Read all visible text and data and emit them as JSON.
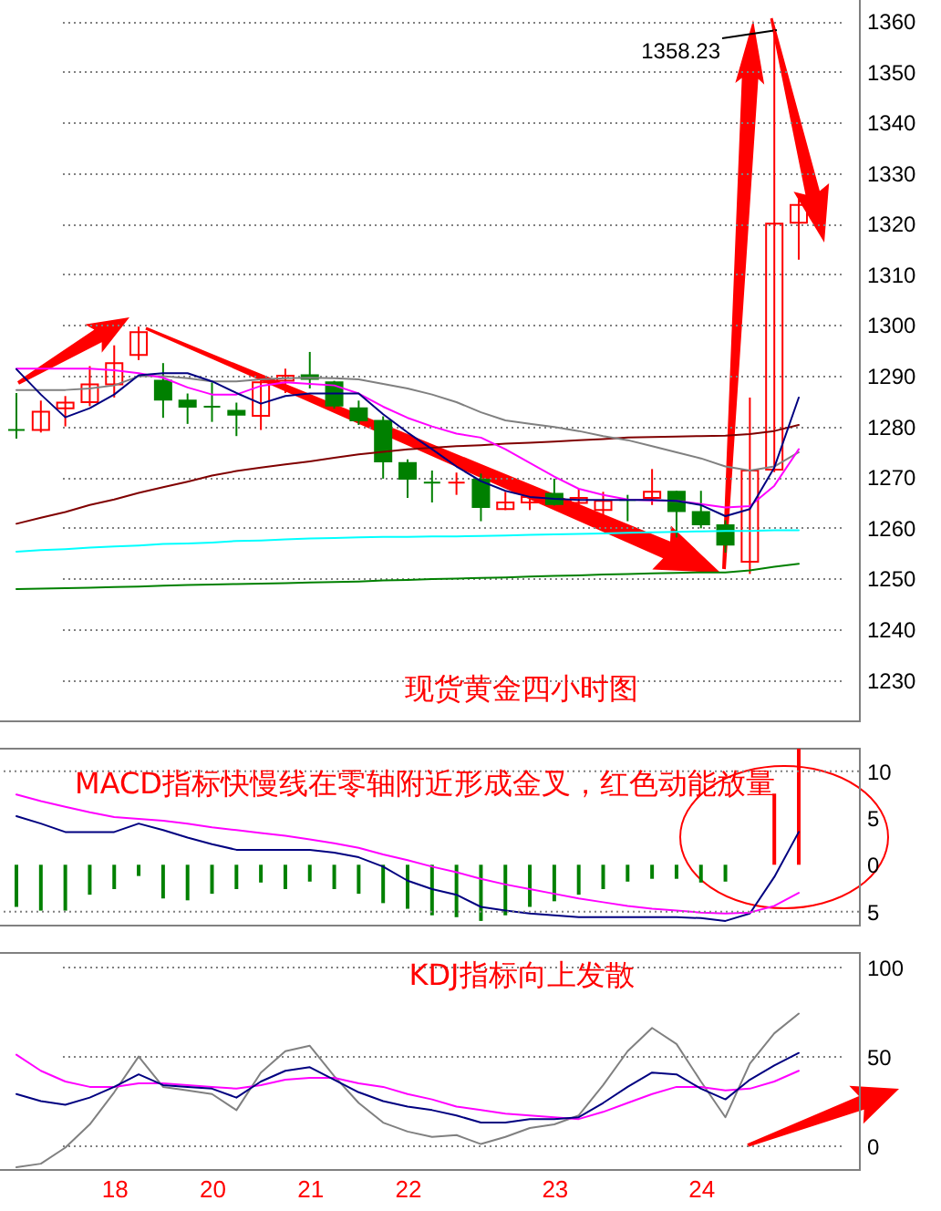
{
  "chart_data": [
    {
      "type": "candlestick",
      "categories": [
        null,
        null,
        null,
        null,
        "18",
        null,
        null,
        null,
        "20",
        null,
        null,
        null,
        "21",
        null,
        null,
        null,
        "22",
        null,
        null,
        null,
        null,
        null,
        "23",
        null,
        null,
        null,
        null,
        null,
        "24",
        null,
        null,
        null,
        null
      ],
      "ohlc": [
        [
          1279.3,
          1286.6,
          1277.6,
          1279.3
        ],
        [
          1279.3,
          1285.1,
          1278.8,
          1282.9
        ],
        [
          1283.6,
          1286.0,
          1280.0,
          1284.7
        ],
        [
          1284.8,
          1291.9,
          1284.0,
          1288.3
        ],
        [
          1288.3,
          1296.0,
          1285.7,
          1292.5
        ],
        [
          1294.1,
          1299.7,
          1293.1,
          1298.6
        ],
        [
          1289.0,
          1292.5,
          1281.7,
          1285.3
        ],
        [
          1285.1,
          1286.5,
          1280.5,
          1283.9
        ],
        [
          1283.9,
          1288.7,
          1280.9,
          1283.9
        ],
        [
          1283.1,
          1284.7,
          1278.1,
          1282.3
        ],
        [
          1282.1,
          1290.1,
          1279.3,
          1288.7
        ],
        [
          1289.0,
          1291.4,
          1286.6,
          1290.0
        ],
        [
          1290.1,
          1294.7,
          1287.5,
          1289.4
        ],
        [
          1288.7,
          1289.0,
          1283.5,
          1284.1
        ],
        [
          1283.6,
          1285.1,
          1280.3,
          1281.2
        ],
        [
          1281.1,
          1282.0,
          1269.7,
          1273.1
        ],
        [
          1272.8,
          1273.5,
          1265.9,
          1269.7
        ],
        [
          1268.9,
          1271.3,
          1265.0,
          1268.9
        ],
        [
          1268.9,
          1270.9,
          1266.5,
          1268.9
        ],
        [
          1269.5,
          1270.7,
          1261.3,
          1264.1
        ],
        [
          1263.7,
          1267.1,
          1263.5,
          1265.0
        ],
        [
          1265.0,
          1268.3,
          1263.5,
          1266.1
        ],
        [
          1266.7,
          1269.7,
          1264.4,
          1264.7
        ],
        [
          1264.9,
          1267.7,
          1264.1,
          1265.9
        ],
        [
          1263.5,
          1267.1,
          1262.3,
          1265.3
        ],
        [
          1265.5,
          1266.5,
          1261.3,
          1265.5
        ],
        [
          1265.9,
          1271.6,
          1264.5,
          1267.1
        ],
        [
          1267.1,
          1267.3,
          1258.1,
          1263.3
        ],
        [
          1263.1,
          1267.3,
          1259.9,
          1260.7
        ],
        [
          1260.5,
          1261.5,
          1255.1,
          1256.7
        ],
        [
          1253.3,
          1285.7,
          1250.9,
          1271.3
        ],
        [
          1271.5,
          1358.23,
          1271.0,
          1320.0
        ],
        [
          1320.2,
          1325.2,
          1312.9,
          1323.7
        ]
      ],
      "colors": [
        "#008000",
        "#ff0000",
        "#ff0000",
        "#ff0000",
        "#ff0000",
        "#ff0000",
        "#008000",
        "#008000",
        "#008000",
        "#008000",
        "#ff0000",
        "#ff0000",
        "#008000",
        "#008000",
        "#008000",
        "#008000",
        "#008000",
        "#008000",
        "#ff0000",
        "#008000",
        "#ff0000",
        "#ff0000",
        "#008000",
        "#ff0000",
        "#ff0000",
        "#008000",
        "#ff0000",
        "#008000",
        "#008000",
        "#008000",
        "#ff0000",
        "#ff0000",
        "#ff0000"
      ],
      "series": [
        {
          "type": "line",
          "color": "#008000",
          "values": [
            1247.9,
            1248.0,
            1248.1,
            1248.2,
            1248.3,
            1248.4,
            1248.6,
            1248.7,
            1248.8,
            1248.9,
            1249.0,
            1249.1,
            1249.2,
            1249.3,
            1249.4,
            1249.6,
            1249.7,
            1249.9,
            1250.0,
            1250.1,
            1250.2,
            1250.4,
            1250.5,
            1250.6,
            1250.8,
            1250.9,
            1251.0,
            1251.1,
            1251.2,
            1251.2,
            1251.6,
            1252.3,
            1252.9
          ]
        },
        {
          "type": "line",
          "color": "#00ffff",
          "values": [
            1255.3,
            1255.6,
            1255.8,
            1256.1,
            1256.3,
            1256.5,
            1256.8,
            1256.9,
            1257.1,
            1257.4,
            1257.5,
            1257.7,
            1257.9,
            1258.0,
            1258.1,
            1258.2,
            1258.2,
            1258.3,
            1258.3,
            1258.4,
            1258.5,
            1258.6,
            1258.7,
            1258.8,
            1258.9,
            1259.0,
            1259.1,
            1259.2,
            1259.3,
            1259.4,
            1259.4,
            1259.5,
            1259.5
          ]
        },
        {
          "type": "line",
          "color": "#800000",
          "values": [
            1260.8,
            1262.0,
            1263.1,
            1264.5,
            1265.6,
            1266.9,
            1268.0,
            1269.1,
            1270.3,
            1271.2,
            1271.9,
            1272.5,
            1273.1,
            1273.8,
            1274.5,
            1275.0,
            1275.5,
            1275.8,
            1276.1,
            1276.3,
            1276.6,
            1276.8,
            1277.0,
            1277.3,
            1277.5,
            1277.8,
            1277.9,
            1278.0,
            1278.1,
            1278.2,
            1278.5,
            1279.1,
            1280.3
          ]
        },
        {
          "type": "line",
          "color": "#808080",
          "values": [
            1287.2,
            1287.2,
            1287.2,
            1287.5,
            1288.1,
            1289.9,
            1289.9,
            1289.5,
            1288.9,
            1288.9,
            1289.3,
            1289.5,
            1289.6,
            1289.5,
            1289.3,
            1288.4,
            1287.5,
            1286.3,
            1284.8,
            1282.8,
            1281.2,
            1280.5,
            1279.9,
            1279.1,
            1278.1,
            1277.3,
            1276.1,
            1274.9,
            1273.7,
            1272.1,
            1271.3,
            1272.1,
            1274.9
          ]
        },
        {
          "type": "line",
          "color": "#ff00ff",
          "values": [
            1291.4,
            1291.4,
            1291.4,
            1291.4,
            1291.1,
            1290.5,
            1289.6,
            1287.7,
            1286.3,
            1286.3,
            1288.0,
            1288.7,
            1288.4,
            1288.1,
            1286.5,
            1283.9,
            1281.7,
            1280.0,
            1278.6,
            1277.8,
            1275.5,
            1272.8,
            1270.1,
            1267.7,
            1266.5,
            1265.6,
            1265.4,
            1265.3,
            1264.7,
            1264.0,
            1264.3,
            1268.3,
            1275.5
          ]
        },
        {
          "type": "line",
          "color": "#000080",
          "values": [
            1291.3,
            1286.3,
            1281.8,
            1283.6,
            1286.3,
            1290.1,
            1290.5,
            1290.5,
            1288.9,
            1286.6,
            1284.5,
            1286.0,
            1286.5,
            1286.5,
            1286.5,
            1282.4,
            1278.8,
            1275.5,
            1272.1,
            1269.2,
            1267.3,
            1266.1,
            1265.7,
            1265.5,
            1265.5,
            1265.5,
            1265.5,
            1265.3,
            1264.5,
            1262.3,
            1263.7,
            1271.9,
            1285.7
          ]
        }
      ],
      "ylim": [
        1222,
        1364.5
      ],
      "yticks": [
        1230,
        1240,
        1250,
        1260,
        1270,
        1280,
        1290,
        1300,
        1310,
        1320,
        1330,
        1340,
        1350,
        1360
      ],
      "grid": "y",
      "tick_labels": "y",
      "annotations": [
        "1358.23",
        "现货黄金四小时图"
      ]
    },
    {
      "type": "bar",
      "categories": [
        null,
        null,
        null,
        null,
        "18",
        null,
        null,
        null,
        "20",
        null,
        null,
        null,
        "21",
        null,
        null,
        null,
        "22",
        null,
        null,
        null,
        null,
        null,
        "23",
        null,
        null,
        null,
        null,
        null,
        "24",
        null,
        null,
        null,
        null
      ],
      "series": [
        {
          "type": "bar",
          "colors": [
            "#008000",
            "#008000",
            "#008000",
            "#008000",
            "#008000",
            "#008000",
            "#008000",
            "#008000",
            "#008000",
            "#008000",
            "#008000",
            "#008000",
            "#008000",
            "#008000",
            "#008000",
            "#008000",
            "#008000",
            "#008000",
            "#008000",
            "#008000",
            "#008000",
            "#008000",
            "#008000",
            "#008000",
            "#008000",
            "#008000",
            "#008000",
            "#008000",
            "#008000",
            "#008000",
            "#008000",
            "#ff0000",
            "#ff0000"
          ],
          "values": [
            -4.5,
            -4.9,
            -4.9,
            -3.2,
            -2.6,
            -1.2,
            -3.6,
            -3.8,
            -3.1,
            -2.6,
            -1.9,
            -2.6,
            -1.8,
            -2.6,
            -3.1,
            -4.1,
            -4.7,
            -5.4,
            -5.6,
            -6.0,
            -5.4,
            -4.5,
            -3.9,
            -3.2,
            -2.6,
            -1.8,
            -1.5,
            -1.5,
            -1.9,
            -1.8,
            null,
            7.6,
            12.4
          ]
        },
        {
          "type": "line",
          "color": "#000080",
          "values": [
            5.2,
            4.4,
            3.5,
            3.5,
            3.5,
            4.4,
            3.7,
            2.9,
            2.2,
            1.6,
            1.6,
            1.6,
            1.6,
            1.3,
            0.8,
            -0.2,
            -1.7,
            -2.6,
            -3.2,
            -4.5,
            -4.9,
            -5.2,
            -5.4,
            -5.6,
            -5.6,
            -5.6,
            -5.6,
            -5.6,
            -5.7,
            -6.0,
            -5.2,
            -1.3,
            3.5
          ]
        },
        {
          "type": "line",
          "color": "#ff00ff",
          "values": [
            7.5,
            6.8,
            6.2,
            5.6,
            5.1,
            4.9,
            4.7,
            4.4,
            4.0,
            3.7,
            3.4,
            3.1,
            2.7,
            2.3,
            1.8,
            1.1,
            0.5,
            -0.2,
            -0.8,
            -1.5,
            -2.1,
            -2.6,
            -3.1,
            -3.6,
            -4.0,
            -4.4,
            -4.7,
            -4.9,
            -5.1,
            -5.2,
            -5.1,
            -4.4,
            -3.0
          ]
        }
      ],
      "ylim": [
        -6.4,
        12.5
      ],
      "yticks": [
        {
          "value": -5,
          "label": "5"
        },
        0,
        5,
        10
      ],
      "ref_lines": [
        {
          "axis": "y",
          "value": 10,
          "color": "#808080",
          "line_style": "dotted"
        },
        {
          "axis": "y",
          "value": -5,
          "color": "#808080",
          "line_style": "dotted"
        }
      ],
      "tick_labels": "y",
      "annotations": [
        "MACD指标快慢线在零轴附近形成金叉，红色动能放量"
      ]
    },
    {
      "type": "line",
      "categories": [
        null,
        null,
        null,
        null,
        "18",
        null,
        null,
        null,
        "20",
        null,
        null,
        null,
        "21",
        null,
        null,
        null,
        "22",
        null,
        null,
        null,
        null,
        null,
        "23",
        null,
        null,
        null,
        null,
        null,
        "24",
        null,
        null,
        null,
        null
      ],
      "series": [
        {
          "color": "#808080",
          "values": [
            -12,
            -10,
            -1,
            12,
            30,
            50,
            33,
            31,
            29,
            20,
            41,
            53,
            56,
            39,
            24,
            13,
            8,
            5,
            6,
            1,
            5,
            10,
            12,
            17,
            34,
            53,
            66,
            57,
            36,
            16,
            46,
            63,
            74
          ]
        },
        {
          "color": "#ff00ff",
          "values": [
            51,
            42,
            36,
            33,
            33,
            35,
            35,
            34,
            33,
            32,
            34,
            37,
            38,
            38,
            35,
            33,
            29,
            26,
            22,
            20,
            18,
            17,
            16,
            15,
            19,
            24,
            29,
            33,
            33,
            31,
            32,
            36,
            42
          ]
        },
        {
          "color": "#000080",
          "values": [
            29,
            25,
            23,
            27,
            33,
            40,
            34,
            33,
            32,
            27,
            36,
            42,
            44,
            37,
            30,
            25,
            22,
            20,
            17,
            13,
            13,
            15,
            15,
            16,
            24,
            33,
            41,
            40,
            32,
            26,
            37,
            45,
            52
          ]
        }
      ],
      "ylim": [
        -13,
        108.5
      ],
      "yticks": [
        0,
        50,
        100
      ],
      "grid": "y",
      "annotations": [
        "KDJ指标向上发散"
      ]
    }
  ]
}
